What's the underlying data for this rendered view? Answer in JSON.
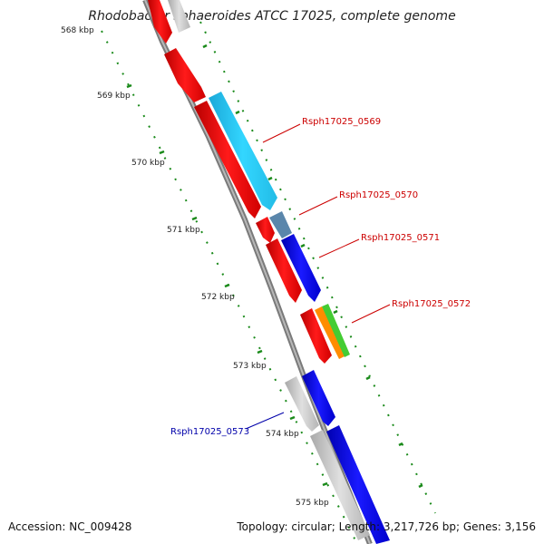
{
  "title": "Rhodobacter sphaeroides ATCC 17025, complete genome",
  "footer": {
    "accession": "Accession: NC_009428",
    "summary": "Topology: circular; Length: 3,217,726 bp; Genes: 3,156"
  },
  "colors": {
    "backbone": "#888888",
    "tick": "#1a8a1a",
    "label_red": "#cc0000",
    "label_blue": "#0000aa"
  },
  "ticks": [
    "568 kbp",
    "569 kbp",
    "570 kbp",
    "571 kbp",
    "572 kbp",
    "573 kbp",
    "574 kbp",
    "575 kbp"
  ],
  "gene_labels": [
    {
      "text": "Rsph17025_0569",
      "color": "#cc0000"
    },
    {
      "text": "Rsph17025_0570",
      "color": "#cc0000"
    },
    {
      "text": "Rsph17025_0571",
      "color": "#cc0000"
    },
    {
      "text": "Rsph17025_0572",
      "color": "#cc0000"
    },
    {
      "text": "Rsph17025_0573",
      "color": "#0000aa"
    }
  ],
  "feature_colors": [
    "#ee0000",
    "#22ccf5",
    "#5a86ab",
    "#0000ee",
    "#ff8c00",
    "#44cc33",
    "#bbbbbb"
  ]
}
